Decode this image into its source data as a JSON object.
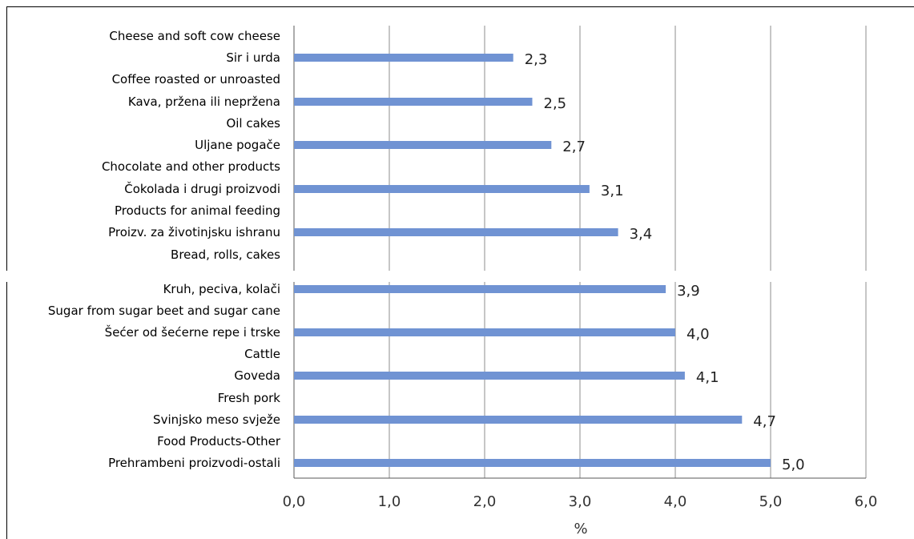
{
  "chart_data": {
    "type": "bar",
    "orientation": "horizontal",
    "categories": [
      "Cheese and soft cow cheese",
      "Sir i urda",
      "Coffee roasted or unroasted",
      "Kava, pržena ili nepržena",
      "Oil cakes",
      "Uljane pogače",
      "Chocolate and other products",
      "Čokolada i drugi proizvodi",
      "Products for animal feeding",
      "Proizv. za životinjsku ishranu",
      "Bread, rolls, cakes",
      "Kruh, peciva, kolači",
      "Sugar from sugar beet and sugar cane",
      "Šećer od šećerne repe i trske",
      "Cattle",
      "Goveda",
      "Fresh pork",
      "Svinjsko meso svježe",
      "Food Products-Other",
      "Prehrambeni proizvodi-ostali"
    ],
    "values": [
      null,
      2.3,
      null,
      2.5,
      null,
      2.7,
      null,
      3.1,
      null,
      3.4,
      null,
      3.9,
      null,
      4.0,
      null,
      4.1,
      null,
      4.7,
      null,
      5.0
    ],
    "value_labels": [
      "",
      "2,3",
      "",
      "2,5",
      "",
      "2,7",
      "",
      "3,1",
      "",
      "3,4",
      "",
      "3,9",
      "",
      "4,0",
      "",
      "4,1",
      "",
      "4,7",
      "",
      "5,0"
    ],
    "x_ticks": [
      "0,0",
      "1,0",
      "2,0",
      "3,0",
      "4,0",
      "5,0",
      "6,0"
    ],
    "xlim": [
      0,
      6
    ],
    "xlabel": "%",
    "grid": true,
    "bar_color": "#7093d3",
    "grid_color": "#8c8c8c"
  }
}
